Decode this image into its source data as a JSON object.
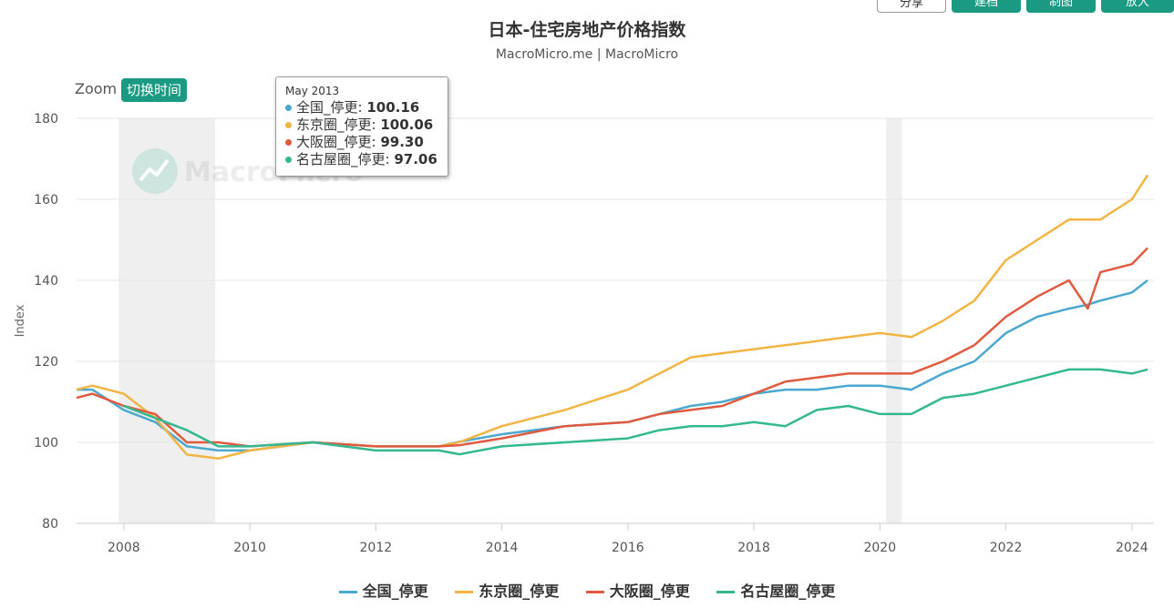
{
  "header": {
    "title": "日本-住宅房地产价格指数",
    "subtitle": "MacroMicro.me | MacroMicro"
  },
  "toolbar": {
    "share_label": "分享",
    "btn2_label": "建档",
    "btn3_label": "制图",
    "btn4_label": "放大"
  },
  "zoom": {
    "label": "Zoom",
    "toggle_label": "切换时间"
  },
  "watermark": {
    "text": "MacroMicro"
  },
  "tooltip": {
    "date": "May 2013",
    "rows": [
      {
        "name": "全国_停更",
        "value": "100.16",
        "color": "#4ba8cf"
      },
      {
        "name": "东京圈_停更",
        "value": "100.06",
        "color": "#f2b544"
      },
      {
        "name": "大阪圈_停更",
        "value": "99.30",
        "color": "#e05a3f"
      },
      {
        "name": "名古屋圈_停更",
        "value": "97.06",
        "color": "#33b88f"
      }
    ]
  },
  "chart_data": {
    "type": "line",
    "title": "日本-住宅房地产价格指数",
    "ylabel": "Index",
    "ylim": [
      80,
      180
    ],
    "yticks": [
      80,
      100,
      120,
      140,
      160,
      180
    ],
    "xlim": [
      2007.25,
      2024.35
    ],
    "xticks": [
      2008,
      2010,
      2012,
      2014,
      2016,
      2018,
      2020,
      2022,
      2024
    ],
    "recessions": [
      [
        2007.92,
        2009.45
      ],
      [
        2020.1,
        2020.35
      ]
    ],
    "grid": true,
    "legend_position": "bottom",
    "series": [
      {
        "name": "全国_停更",
        "color": "#4ba8cf",
        "x": [
          2007.25,
          2007.5,
          2008.0,
          2008.5,
          2009.0,
          2009.5,
          2010.0,
          2011.0,
          2012.0,
          2013.0,
          2013.33,
          2014.0,
          2015.0,
          2016.0,
          2016.5,
          2017.0,
          2017.5,
          2018.0,
          2018.5,
          2019.0,
          2019.5,
          2020.0,
          2020.5,
          2021.0,
          2021.5,
          2022.0,
          2022.5,
          2023.0,
          2023.3,
          2023.5,
          2024.0,
          2024.25
        ],
        "y": [
          113,
          113,
          108,
          105,
          99,
          98,
          98,
          100,
          99,
          99,
          100.16,
          102,
          104,
          105,
          107,
          109,
          110,
          112,
          113,
          113,
          114,
          114,
          113,
          117,
          120,
          127,
          131,
          133,
          134,
          135,
          137,
          140
        ]
      },
      {
        "name": "东京圈_停更",
        "color": "#f2b544",
        "x": [
          2007.25,
          2007.5,
          2008.0,
          2008.5,
          2009.0,
          2009.5,
          2010.0,
          2011.0,
          2012.0,
          2013.0,
          2013.33,
          2014.0,
          2015.0,
          2016.0,
          2016.5,
          2017.0,
          2017.5,
          2018.0,
          2018.5,
          2019.0,
          2019.5,
          2020.0,
          2020.5,
          2021.0,
          2021.5,
          2022.0,
          2022.5,
          2023.0,
          2023.5,
          2024.0,
          2024.25
        ],
        "y": [
          113,
          114,
          112,
          106,
          97,
          96,
          98,
          100,
          99,
          99,
          100.06,
          104,
          108,
          113,
          117,
          121,
          122,
          123,
          124,
          125,
          126,
          127,
          126,
          130,
          135,
          145,
          150,
          155,
          155,
          160,
          166
        ]
      },
      {
        "name": "大阪圈_停更",
        "color": "#e05a3f",
        "x": [
          2007.25,
          2007.5,
          2008.0,
          2008.5,
          2009.0,
          2009.5,
          2010.0,
          2011.0,
          2012.0,
          2013.0,
          2013.33,
          2014.0,
          2015.0,
          2016.0,
          2016.5,
          2017.0,
          2017.5,
          2018.0,
          2018.5,
          2019.0,
          2019.5,
          2020.0,
          2020.5,
          2021.0,
          2021.5,
          2022.0,
          2022.5,
          2023.0,
          2023.3,
          2023.5,
          2024.0,
          2024.25
        ],
        "y": [
          111,
          112,
          109,
          107,
          100,
          100,
          99,
          100,
          99,
          99,
          99.3,
          101,
          104,
          105,
          107,
          108,
          109,
          112,
          115,
          116,
          117,
          117,
          117,
          120,
          124,
          131,
          136,
          140,
          133,
          142,
          144,
          148
        ]
      },
      {
        "name": "名古屋圈_停更",
        "color": "#33b88f",
        "x": [
          2007.25,
          2008.0,
          2008.5,
          2009.0,
          2009.5,
          2010.0,
          2011.0,
          2012.0,
          2013.0,
          2013.33,
          2014.0,
          2015.0,
          2016.0,
          2016.5,
          2017.0,
          2017.5,
          2018.0,
          2018.5,
          2019.0,
          2019.5,
          2020.0,
          2020.5,
          2021.0,
          2021.5,
          2022.0,
          2022.5,
          2023.0,
          2023.5,
          2024.0,
          2024.25
        ],
        "y": [
          null,
          109,
          106,
          103,
          99,
          99,
          100,
          98,
          98,
          97.06,
          99,
          100,
          101,
          103,
          104,
          104,
          105,
          104,
          108,
          109,
          107,
          107,
          111,
          112,
          114,
          116,
          118,
          118,
          117,
          118
        ]
      }
    ]
  }
}
